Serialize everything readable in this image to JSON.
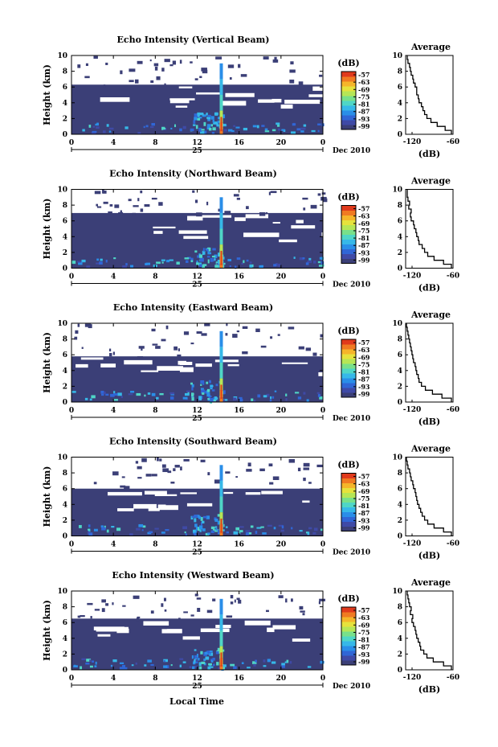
{
  "figure": {
    "xlabel": "Local Time",
    "date_label": "Dec 2010",
    "day_label": "25"
  },
  "colorbar": {
    "unit": "(dB)",
    "ticks": [
      "-57",
      "-63",
      "-69",
      "-75",
      "-81",
      "-87",
      "-93",
      "-99"
    ],
    "colors": [
      "#3b3f77",
      "#3f4aa6",
      "#3066d6",
      "#2a8ee8",
      "#36b8e8",
      "#4fd6c6",
      "#78e08a",
      "#b6e656",
      "#e6e23c",
      "#f5b52a",
      "#f07a22",
      "#e03a1c"
    ]
  },
  "chart_data": [
    {
      "type": "heatmap",
      "title": "Echo Intensity (Vertical Beam)",
      "ylabel": "Height (km)",
      "xticks": [
        "0",
        "4",
        "8",
        "12",
        "16",
        "20",
        "0"
      ],
      "yticks": [
        "0",
        "2",
        "4",
        "6",
        "8",
        "10"
      ],
      "xlim": [
        0,
        24
      ],
      "ylim": [
        0,
        10
      ],
      "clim": [
        -99,
        -57
      ],
      "spike_hour": 14.3,
      "cloud_top_km": 6.3,
      "average_profile": {
        "title": "Average",
        "xlabel": "(dB)",
        "xticks": [
          "-120",
          "-60"
        ],
        "xlim": [
          -120,
          -60
        ],
        "yticks": [
          "0",
          "2",
          "4",
          "6",
          "8",
          "10"
        ],
        "height_km": [
          0,
          0.5,
          1,
          1.5,
          2,
          2.5,
          3,
          3.5,
          4,
          4.5,
          5,
          5.5,
          6,
          6.5,
          7,
          7.5,
          8,
          8.5,
          9,
          9.5
        ],
        "db": [
          -62,
          -70,
          -80,
          -88,
          -93,
          -96,
          -98,
          -100,
          -103,
          -104,
          -106,
          -106,
          -108,
          -110,
          -111,
          -113,
          -114,
          -115,
          -117,
          -118
        ]
      }
    },
    {
      "type": "heatmap",
      "title": "Echo Intensity (Northward Beam)",
      "ylabel": "Height (km)",
      "xticks": [
        "0",
        "4",
        "8",
        "12",
        "16",
        "20",
        "0"
      ],
      "yticks": [
        "0",
        "2",
        "4",
        "6",
        "8",
        "10"
      ],
      "xlim": [
        0,
        24
      ],
      "ylim": [
        0,
        10
      ],
      "clim": [
        -99,
        -57
      ],
      "spike_hour": 14.3,
      "cloud_top_km": 7.0,
      "average_profile": {
        "title": "Average",
        "xlabel": "(dB)",
        "xticks": [
          "-120",
          "-60"
        ],
        "xlim": [
          -120,
          -60
        ],
        "yticks": [
          "0",
          "2",
          "4",
          "6",
          "8",
          "10"
        ],
        "height_km": [
          0,
          0.5,
          1,
          1.5,
          2,
          2.5,
          3,
          3.5,
          4,
          4.5,
          5,
          5.5,
          6,
          6.5,
          7,
          7.5,
          8,
          8.5,
          9,
          9.5
        ],
        "db": [
          -62,
          -72,
          -84,
          -92,
          -96,
          -99,
          -103,
          -104,
          -106,
          -107,
          -109,
          -110,
          -113,
          -114,
          -113,
          -116,
          -115,
          -117,
          -118,
          -118
        ]
      }
    },
    {
      "type": "heatmap",
      "title": "Echo Intensity (Eastward Beam)",
      "ylabel": "Height (km)",
      "xticks": [
        "0",
        "4",
        "8",
        "12",
        "16",
        "20",
        "0"
      ],
      "yticks": [
        "0",
        "2",
        "4",
        "6",
        "8",
        "10"
      ],
      "xlim": [
        0,
        24
      ],
      "ylim": [
        0,
        10
      ],
      "clim": [
        -99,
        -57
      ],
      "spike_hour": 14.3,
      "cloud_top_km": 5.8,
      "average_profile": {
        "title": "Average",
        "xlabel": "(dB)",
        "xticks": [
          "-120",
          "-60"
        ],
        "xlim": [
          -120,
          -60
        ],
        "yticks": [
          "0",
          "2",
          "4",
          "6",
          "8",
          "10"
        ],
        "height_km": [
          0,
          0.5,
          1,
          1.5,
          2,
          2.5,
          3,
          3.5,
          4,
          4.5,
          5,
          5.5,
          6,
          6.5,
          7,
          7.5,
          8,
          8.5,
          9,
          9.5
        ],
        "db": [
          -62,
          -74,
          -86,
          -95,
          -100,
          -103,
          -104,
          -106,
          -107,
          -108,
          -110,
          -111,
          -112,
          -113,
          -114,
          -115,
          -116,
          -117,
          -118,
          -119
        ]
      }
    },
    {
      "type": "heatmap",
      "title": "Echo Intensity (Southward Beam)",
      "ylabel": "Height (km)",
      "xticks": [
        "0",
        "4",
        "8",
        "12",
        "16",
        "20",
        "0"
      ],
      "yticks": [
        "0",
        "2",
        "4",
        "6",
        "8",
        "10"
      ],
      "xlim": [
        0,
        24
      ],
      "ylim": [
        0,
        10
      ],
      "clim": [
        -99,
        -57
      ],
      "spike_hour": 14.3,
      "cloud_top_km": 6.0,
      "average_profile": {
        "title": "Average",
        "xlabel": "(dB)",
        "xticks": [
          "-120",
          "-60"
        ],
        "xlim": [
          -120,
          -60
        ],
        "yticks": [
          "0",
          "2",
          "4",
          "6",
          "8",
          "10"
        ],
        "height_km": [
          0,
          0.5,
          1,
          1.5,
          2,
          2.5,
          3,
          3.5,
          4,
          4.5,
          5,
          5.5,
          6,
          6.5,
          7,
          7.5,
          8,
          8.5,
          9,
          9.5
        ],
        "db": [
          -62,
          -72,
          -84,
          -92,
          -96,
          -99,
          -101,
          -103,
          -105,
          -106,
          -107,
          -108,
          -110,
          -111,
          -113,
          -114,
          -115,
          -117,
          -118,
          -119
        ]
      }
    },
    {
      "type": "heatmap",
      "title": "Echo Intensity (Westward Beam)",
      "ylabel": "Height (km)",
      "xticks": [
        "0",
        "4",
        "8",
        "12",
        "16",
        "20",
        "0"
      ],
      "yticks": [
        "0",
        "2",
        "4",
        "6",
        "8",
        "10"
      ],
      "xlim": [
        0,
        24
      ],
      "ylim": [
        0,
        10
      ],
      "clim": [
        -99,
        -57
      ],
      "spike_hour": 14.3,
      "cloud_top_km": 6.5,
      "average_profile": {
        "title": "Average",
        "xlabel": "(dB)",
        "xticks": [
          "-120",
          "-60"
        ],
        "xlim": [
          -120,
          -60
        ],
        "yticks": [
          "0",
          "2",
          "4",
          "6",
          "8",
          "10"
        ],
        "height_km": [
          0,
          0.5,
          1,
          1.5,
          2,
          2.5,
          3,
          3.5,
          4,
          4.5,
          5,
          5.5,
          6,
          6.5,
          7,
          7.5,
          8,
          8.5,
          9,
          9.5
        ],
        "db": [
          -62,
          -72,
          -85,
          -93,
          -97,
          -101,
          -102,
          -104,
          -106,
          -107,
          -108,
          -110,
          -112,
          -111,
          -114,
          -113,
          -115,
          -116,
          -117,
          -118
        ]
      }
    }
  ]
}
